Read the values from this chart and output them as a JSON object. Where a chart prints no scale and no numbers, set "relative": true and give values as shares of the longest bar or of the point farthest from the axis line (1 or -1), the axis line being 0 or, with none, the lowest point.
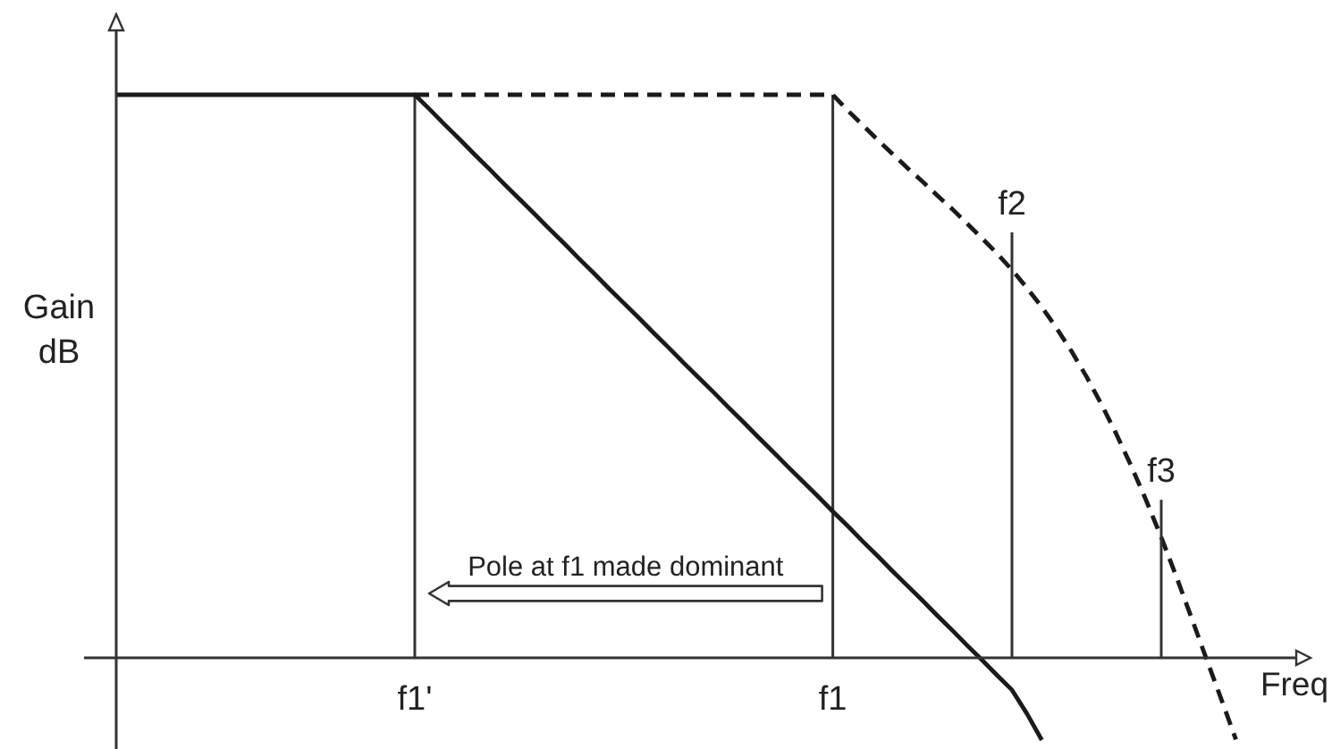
{
  "chart_data": {
    "type": "line",
    "xlabel": "Freq",
    "ylabel": "Gain\ndB",
    "relative": true,
    "tick_labels": "x",
    "grid": "x",
    "categories": [
      null,
      null,
      null,
      null,
      null,
      null,
      null,
      null,
      null,
      null,
      null,
      null,
      null,
      null,
      null,
      null,
      null,
      null,
      null,
      null,
      "f1'",
      null,
      null,
      null,
      null,
      null,
      null,
      null,
      null,
      null,
      null,
      null,
      null,
      null,
      null,
      null,
      null,
      null,
      null,
      null,
      null,
      null,
      null,
      null,
      null,
      null,
      null,
      null,
      "f1",
      null,
      null,
      null,
      null,
      null,
      null,
      null,
      null,
      null,
      null,
      null,
      null,
      null,
      null,
      null,
      null,
      null,
      null,
      null,
      null,
      null,
      null,
      null,
      null,
      null,
      null,
      null,
      null,
      null,
      null,
      null,
      null
    ],
    "series": [
      {
        "color": "#1a1a1a",
        "line_style": "solid",
        "values": [
          1,
          1,
          1,
          1,
          1,
          1,
          1,
          1,
          1,
          1,
          1,
          1,
          1,
          1,
          1,
          1,
          1,
          1,
          1,
          1,
          1,
          0.974,
          0.947,
          0.921,
          0.894,
          0.868,
          0.841,
          0.815,
          0.789,
          0.762,
          0.736,
          0.709,
          0.683,
          0.656,
          0.63,
          0.604,
          0.577,
          0.551,
          0.524,
          0.498,
          0.472,
          0.445,
          0.419,
          0.392,
          0.366,
          0.339,
          0.313,
          0.287,
          0.26,
          0.234,
          0.207,
          0.181,
          0.154,
          0.128,
          0.102,
          0.075,
          0.049,
          0.022,
          -0.004,
          -0.031,
          -0.057,
          -0.099,
          -0.146,
          null,
          null,
          null,
          null,
          null,
          null,
          null,
          null,
          null,
          null,
          null,
          null,
          null,
          null,
          null,
          null,
          null,
          null
        ]
      },
      {
        "color": "#1a1a1a",
        "line_style": "dashed",
        "values": [
          null,
          null,
          null,
          null,
          null,
          null,
          null,
          null,
          null,
          null,
          null,
          null,
          null,
          null,
          null,
          null,
          null,
          null,
          null,
          null,
          1,
          1,
          1,
          1,
          1,
          1,
          1,
          1,
          1,
          1,
          1,
          1,
          1,
          1,
          1,
          1,
          1,
          1,
          1,
          1,
          1,
          1,
          1,
          1,
          1,
          1,
          1,
          1,
          1,
          0.972,
          0.946,
          0.92,
          0.895,
          0.87,
          0.846,
          0.821,
          0.797,
          0.771,
          0.745,
          0.718,
          0.689,
          0.657,
          0.623,
          0.585,
          0.544,
          0.499,
          0.45,
          0.397,
          0.34,
          0.279,
          0.214,
          0.145,
          0.073,
          0,
          -0.072,
          -0.145,
          null,
          null,
          null,
          null,
          null
        ]
      }
    ],
    "annotations": [
      "Pole at f1 made dominant",
      {
        "text": "f2",
        "y": 0.689
      },
      {
        "text": "f3",
        "y": 0.214
      }
    ]
  }
}
